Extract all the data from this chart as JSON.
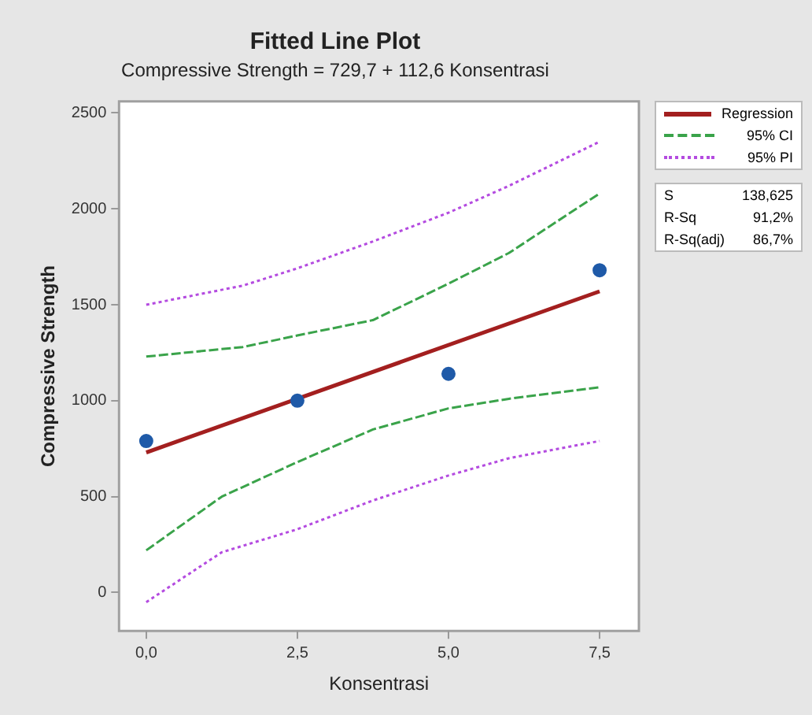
{
  "chart_data": {
    "type": "scatter",
    "title": "Fitted Line Plot",
    "subtitle": "Compressive Strength = 729,7 + 112,6 Konsentrasi",
    "xlabel": "Konsentrasi",
    "ylabel": "Compressive Strength",
    "x": [
      0,
      2.5,
      5,
      7.5
    ],
    "series": [
      {
        "color": "#1f5aa8",
        "values": [
          790,
          1000,
          1140,
          1680
        ],
        "marker": "circle"
      },
      {
        "type": "line",
        "name": "Regression",
        "color": "#a31f1f",
        "x": [
          0,
          7.5
        ],
        "values": [
          730,
          1570
        ],
        "line_style": "solid",
        "marker": "none"
      },
      {
        "type": "line",
        "name": "95% CI",
        "color": "#3aa34a",
        "x": [
          0,
          1.6,
          2.5,
          3.75,
          5,
          6,
          7.5
        ],
        "values": [
          1230,
          1280,
          1340,
          1420,
          1610,
          1770,
          2080
        ],
        "line_style": "dashed",
        "marker": "none"
      },
      {
        "type": "line",
        "color": "#3aa34a",
        "x": [
          0,
          1.25,
          2.5,
          3.75,
          5,
          6,
          7.5
        ],
        "values": [
          220,
          500,
          680,
          850,
          960,
          1010,
          1070
        ],
        "line_style": "dashed",
        "marker": "none"
      },
      {
        "type": "line",
        "name": "95% PI",
        "color": "#b44be0",
        "x": [
          0,
          1.6,
          2.5,
          3.75,
          5,
          6,
          7.5
        ],
        "values": [
          1500,
          1600,
          1690,
          1830,
          1980,
          2120,
          2350
        ],
        "line_style": "dotted",
        "marker": "none"
      },
      {
        "type": "line",
        "color": "#b44be0",
        "x": [
          0,
          1.25,
          2.5,
          3.75,
          5,
          6,
          7.5
        ],
        "values": [
          -50,
          210,
          330,
          480,
          610,
          700,
          790
        ],
        "line_style": "dotted",
        "marker": "none"
      }
    ],
    "xlim": [
      -0.45,
      8.15
    ],
    "xticks": [
      {
        "value": 0,
        "label": "0,0"
      },
      {
        "value": 2.5,
        "label": "2,5"
      },
      {
        "value": 5,
        "label": "5,0"
      },
      {
        "value": 7.5,
        "label": "7,5"
      }
    ],
    "ylim": [
      -200,
      2560
    ],
    "yticks": [
      0,
      500,
      1000,
      1500,
      2000,
      2500
    ],
    "grid": false,
    "legend": "top right",
    "annotations": [
      "S 138,625",
      "R-Sq 91,2%",
      "R-Sq(adj) 86,7%"
    ]
  }
}
